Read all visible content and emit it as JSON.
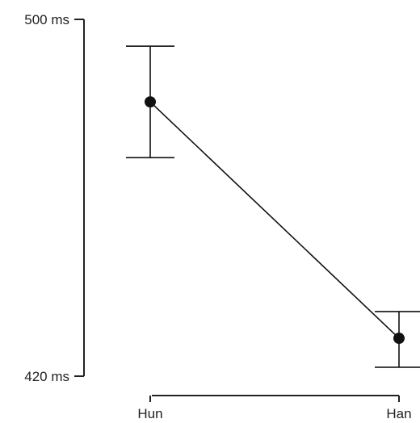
{
  "chart_data": {
    "type": "line",
    "title": "",
    "xlabel": "",
    "ylabel": "",
    "categories": [
      "Hun",
      "Han"
    ],
    "series": [
      {
        "values": [
          481.5,
          428.5
        ],
        "error_low": [
          469,
          422
        ],
        "error_high": [
          494,
          434.5
        ]
      }
    ],
    "y_tick_labels": [
      "500 ms",
      "420 ms"
    ],
    "ylim": [
      420,
      500
    ],
    "grid": false,
    "legend": "none",
    "colors": {
      "line": "#111111",
      "axis": "#222222",
      "text": "#222222",
      "background": "#ffffff"
    }
  }
}
